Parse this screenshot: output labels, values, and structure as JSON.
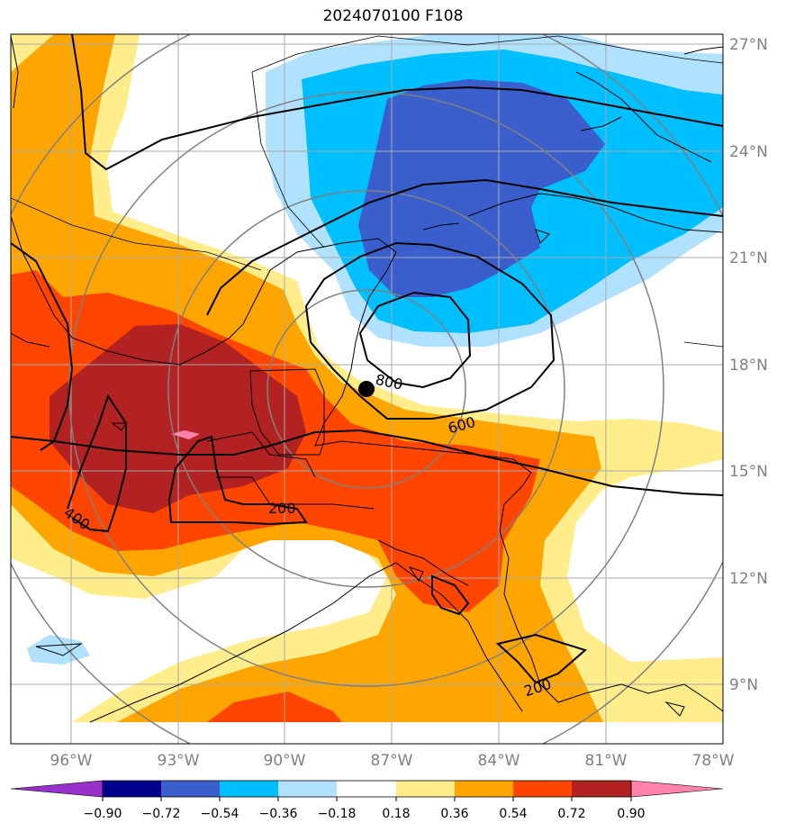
{
  "title": "2024070100 F108",
  "map": {
    "lon_range": [
      -97.5,
      -77.5
    ],
    "lat_range": [
      7.5,
      27.5
    ],
    "lon_ticks": [
      "96°W",
      "93°W",
      "90°W",
      "87°W",
      "84°W",
      "81°W",
      "78°W"
    ],
    "lat_ticks": [
      "27°N",
      "24°N",
      "21°N",
      "18°N",
      "15°N",
      "12°N",
      "9°N"
    ],
    "storm_center": {
      "lon": -87.7,
      "lat": 17.3
    },
    "contour_labels": [
      "800",
      "600",
      "400",
      "200",
      "200"
    ]
  },
  "colorbar": {
    "ticks": [
      "−0.90",
      "−0.72",
      "−0.54",
      "−0.36",
      "−0.18",
      "0.18",
      "0.36",
      "0.54",
      "0.72",
      "0.90"
    ],
    "colors": [
      "#9932cc",
      "#00008b",
      "#3a5fcd",
      "#00bfff",
      "#b0e2ff",
      "#ffffff",
      "#ffec8b",
      "#ffa500",
      "#ff4500",
      "#b22222",
      "#ff82ab"
    ]
  }
}
